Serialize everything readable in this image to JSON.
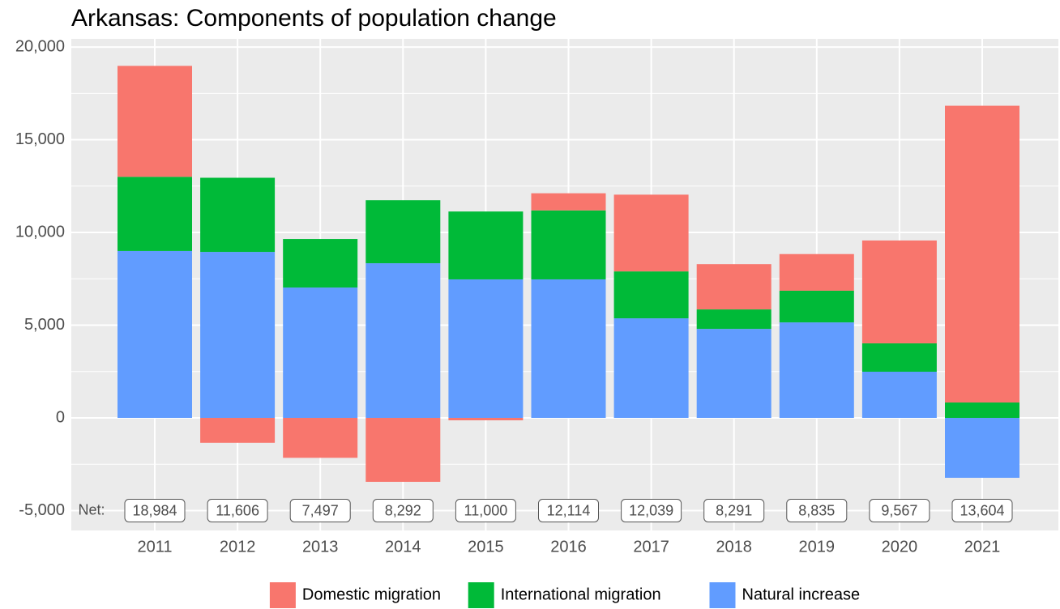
{
  "chart_data": {
    "type": "stacked_bar",
    "title": "Arkansas: Components of population change",
    "categories": [
      "2011",
      "2012",
      "2013",
      "2014",
      "2015",
      "2016",
      "2017",
      "2018",
      "2019",
      "2020",
      "2021"
    ],
    "series": [
      {
        "name": "Domestic migration",
        "color": "#F8766D",
        "values": [
          5984,
          -1344,
          -2153,
          -3448,
          -130,
          924,
          4139,
          2441,
          1975,
          5547,
          16004
        ]
      },
      {
        "name": "International migration",
        "color": "#00BA38",
        "values": [
          4000,
          4000,
          2620,
          3400,
          3660,
          3720,
          2530,
          1050,
          1710,
          1530,
          830
        ]
      },
      {
        "name": "Natural increase",
        "color": "#619CFF",
        "values": [
          9000,
          8950,
          7030,
          8340,
          7470,
          7470,
          5370,
          4800,
          5150,
          2490,
          -3230
        ]
      }
    ],
    "net_title": "Net:",
    "net_labels": [
      "18,984",
      "11,606",
      "7,497",
      "8,292",
      "11,000",
      "12,114",
      "12,039",
      "8,291",
      "8,835",
      "9,567",
      "13,604"
    ],
    "ylim": [
      -6070,
      20440
    ],
    "yticks": [
      {
        "value": -5000,
        "label": "-5,000"
      },
      0,
      {
        "value": 5000,
        "label": "5,000"
      },
      {
        "value": 10000,
        "label": "10,000"
      },
      {
        "value": 15000,
        "label": "15,000"
      },
      {
        "value": 20000,
        "label": "20,000"
      }
    ],
    "grid": true,
    "legend_position": "bottom"
  }
}
